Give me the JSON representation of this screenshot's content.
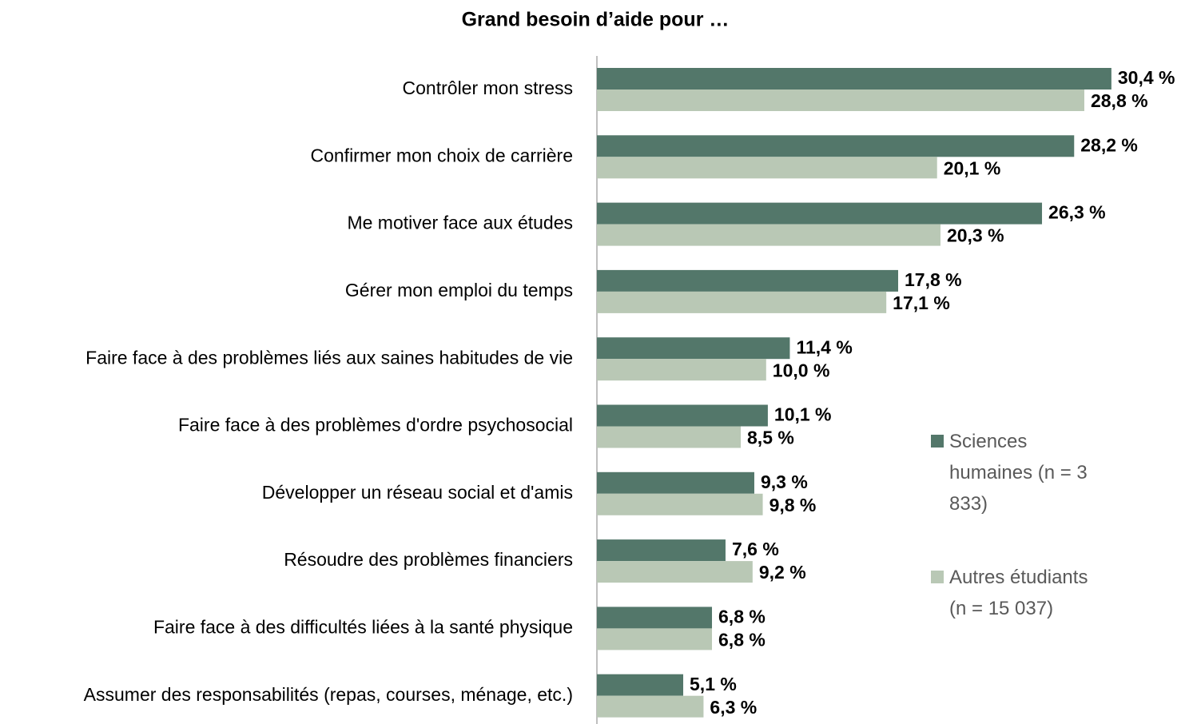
{
  "chart_data": {
    "type": "bar",
    "orientation": "horizontal",
    "title": "Grand besoin d’aide pour …",
    "categories": [
      "Contrôler mon stress",
      "Confirmer mon choix de carrière",
      "Me motiver face aux études",
      "Gérer mon emploi du temps",
      "Faire face à des problèmes liés aux saines habitudes de vie",
      "Faire face à des problèmes d'ordre psychosocial",
      "Développer un réseau social et d'amis",
      "Résoudre des problèmes financiers",
      "Faire face à des difficultés liées à la santé physique",
      "Assumer des responsabilités (repas, courses, ménage, etc.)"
    ],
    "series": [
      {
        "name": "Sciences humaines (n = 3 833)",
        "color": "#53776a",
        "values": [
          30.4,
          28.2,
          26.3,
          17.8,
          11.4,
          10.1,
          9.3,
          7.6,
          6.8,
          5.1
        ],
        "value_labels": [
          "30,4 %",
          "28,2 %",
          "26,3 %",
          "17,8 %",
          "11,4 %",
          "10,1 %",
          "9,3 %",
          "7,6 %",
          "6,8 %",
          "5,1 %"
        ]
      },
      {
        "name": "Autres étudiants (n = 15 037)",
        "color": "#b9c8b5",
        "values": [
          28.8,
          20.1,
          20.3,
          17.1,
          10.0,
          8.5,
          9.8,
          9.2,
          6.8,
          6.3
        ],
        "value_labels": [
          "28,8 %",
          "20,1 %",
          "20,3 %",
          "17,1 %",
          "10,0 %",
          "8,5 %",
          "9,8 %",
          "9,2 %",
          "6,8 %",
          "6,3 %"
        ]
      }
    ],
    "xlim": [
      0,
      35
    ],
    "legend": "right"
  }
}
